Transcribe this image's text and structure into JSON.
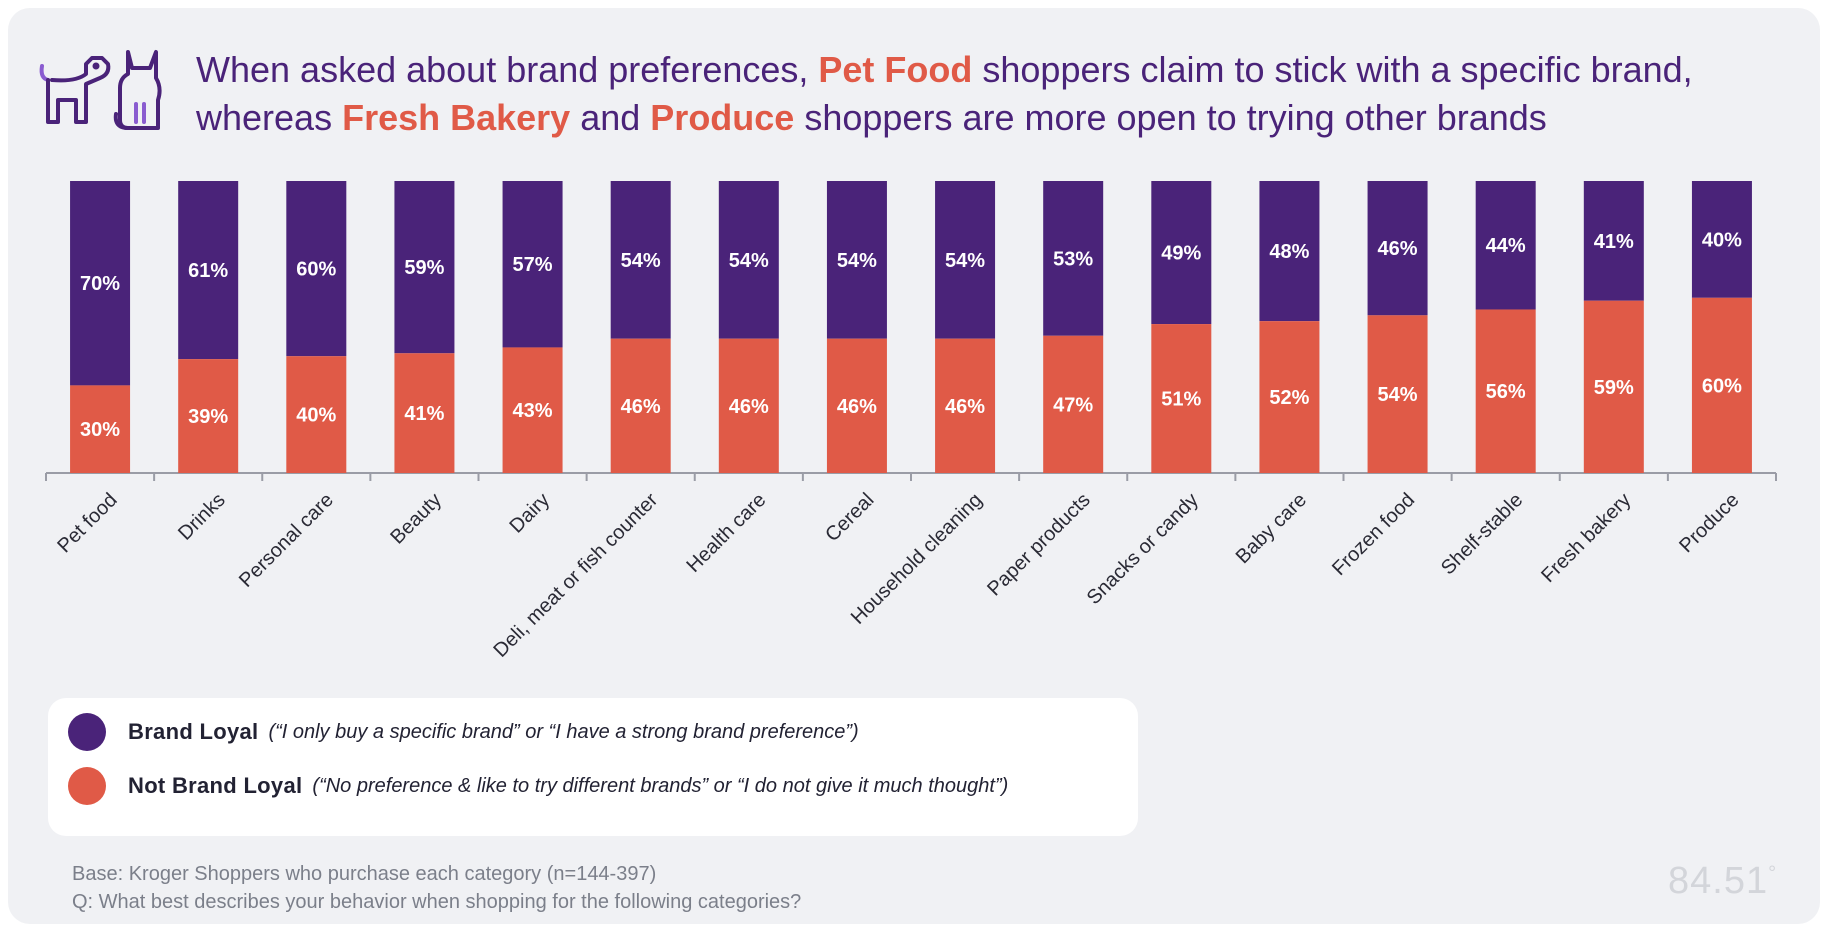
{
  "title": {
    "part1": "When asked about brand preferences, ",
    "hl1": "Pet Food",
    "part2": " shoppers claim to stick with a specific brand, whereas ",
    "hl2": "Fresh Bakery",
    "part3": " and ",
    "hl3": "Produce",
    "part4": " shoppers are more open to trying other brands"
  },
  "icons": [
    "dog-icon",
    "cat-icon"
  ],
  "colors": {
    "loyal": "#4a2379",
    "not_loyal": "#e05a47",
    "axis": "#9a9ca6",
    "label_text": "#ffffff",
    "category_text": "#2a2a35"
  },
  "chart_data": {
    "type": "bar",
    "stacked": true,
    "title": "",
    "xlabel": "",
    "ylabel": "",
    "ylim": [
      0,
      100
    ],
    "grid": false,
    "legend_position": "bottom-left",
    "categories": [
      "Pet food",
      "Drinks",
      "Personal care",
      "Beauty",
      "Dairy",
      "Deli, meat or fish counter",
      "Health care",
      "Cereal",
      "Household cleaning",
      "Paper products",
      "Snacks or candy",
      "Baby care",
      "Frozen food",
      "Shelf-stable",
      "Fresh bakery",
      "Produce"
    ],
    "series": [
      {
        "name": "Not Brand Loyal",
        "values": [
          30,
          39,
          40,
          41,
          43,
          46,
          46,
          46,
          46,
          47,
          51,
          52,
          54,
          56,
          59,
          60
        ]
      },
      {
        "name": "Brand Loyal",
        "values": [
          70,
          61,
          60,
          59,
          57,
          54,
          54,
          54,
          54,
          53,
          49,
          48,
          46,
          44,
          41,
          40
        ]
      }
    ]
  },
  "legend": {
    "items": [
      {
        "label": "Brand Loyal",
        "desc": "(“I only buy a specific brand” or “I have a strong brand preference”)"
      },
      {
        "label": "Not Brand Loyal",
        "desc": "(“No preference & like to try different brands” or “I do not give it much thought”)"
      }
    ]
  },
  "footnote": {
    "base": "Base: Kroger Shoppers who purchase each category (n=144-397)",
    "question": "Q: What best describes your behavior when shopping for the following categories?"
  },
  "logo": {
    "text": "84.51",
    "mark": "°"
  }
}
